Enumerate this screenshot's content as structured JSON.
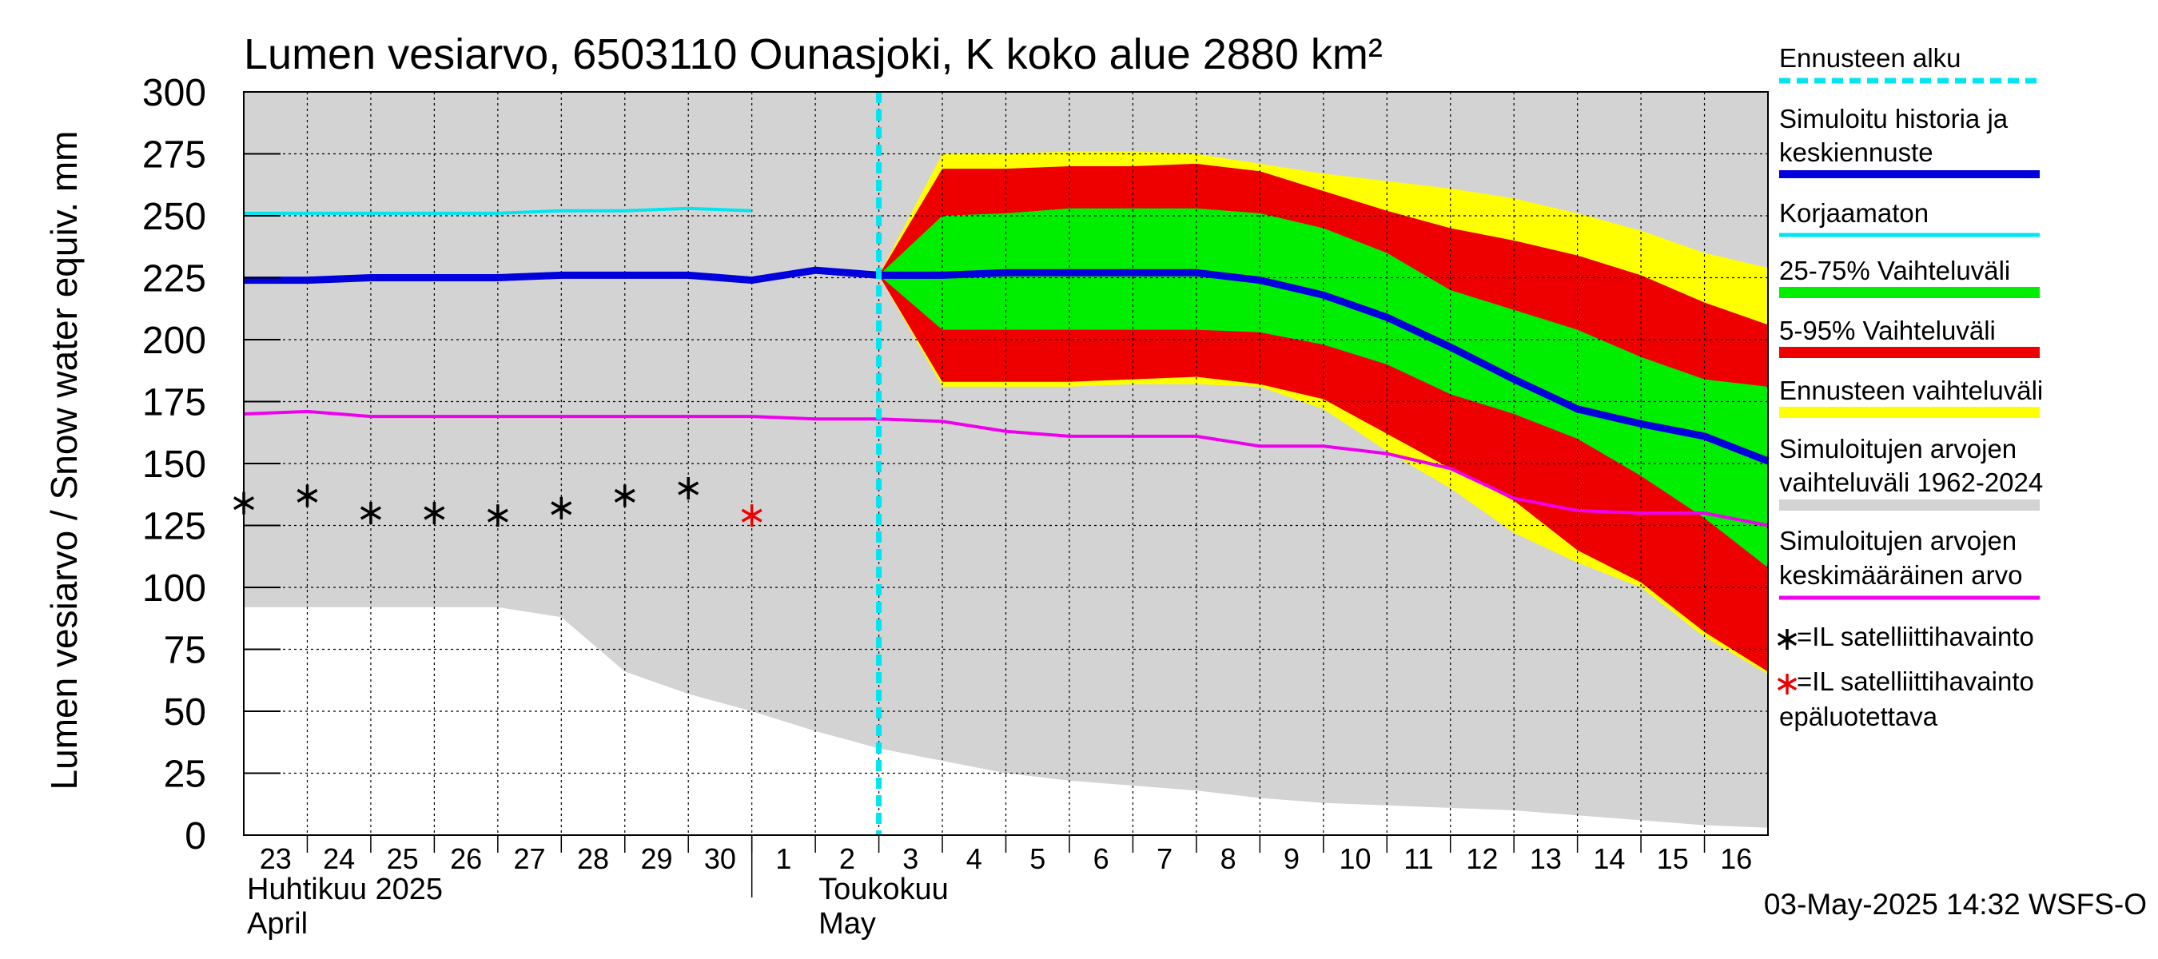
{
  "chart_data": {
    "type": "area",
    "title": "Lumen vesiarvo, 6503110 Ounasjoki, K koko alue 2880 km²",
    "ylabel": "Lumen vesiarvo / Snow water equiv.    mm",
    "ylim": [
      0,
      300
    ],
    "yticks": [
      0,
      25,
      50,
      75,
      100,
      125,
      150,
      175,
      200,
      225,
      250,
      275,
      300
    ],
    "xlim": [
      0,
      24
    ],
    "day_labels": [
      "23",
      "24",
      "25",
      "26",
      "27",
      "28",
      "29",
      "30",
      "1",
      "2",
      "3",
      "4",
      "5",
      "6",
      "7",
      "8",
      "9",
      "10",
      "11",
      "12",
      "13",
      "14",
      "15",
      "16"
    ],
    "month_labels": [
      {
        "fi": "Huhtikuu  2025",
        "en": "April",
        "x": 0
      },
      {
        "fi": "Toukokuu",
        "en": "May",
        "x": 9
      }
    ],
    "month_divider_x": 8,
    "grid": true,
    "forecast_start_x": 10,
    "series": {
      "sim_range_lower": {
        "x": [
          0,
          3,
          4,
          5,
          6,
          7,
          8,
          9,
          10,
          11,
          12,
          13,
          14,
          15,
          16,
          17,
          18,
          19,
          20,
          21,
          22,
          23,
          24
        ],
        "y": [
          92,
          92,
          92,
          88,
          66,
          57,
          50,
          42,
          35,
          30,
          25,
          22,
          20,
          18,
          15,
          13,
          12,
          11,
          10,
          8,
          6,
          4,
          3
        ]
      },
      "forecast_range": {
        "x": [
          10,
          11,
          12,
          13,
          14,
          15,
          16,
          17,
          18,
          19,
          20,
          21,
          22,
          23,
          24
        ],
        "upper": [
          226,
          275,
          275,
          276,
          276,
          275,
          271,
          267,
          264,
          261,
          257,
          251,
          244,
          235,
          229
        ],
        "lower": [
          226,
          181,
          181,
          181,
          182,
          182,
          181,
          172,
          155,
          140,
          122,
          110,
          100,
          80,
          65
        ]
      },
      "range_5_95": {
        "x": [
          10,
          11,
          12,
          13,
          14,
          15,
          16,
          17,
          18,
          19,
          20,
          21,
          22,
          23,
          24
        ],
        "upper": [
          226,
          269,
          269,
          270,
          270,
          271,
          268,
          260,
          252,
          245,
          240,
          234,
          226,
          215,
          206
        ],
        "lower": [
          226,
          183,
          183,
          183,
          184,
          185,
          182,
          176,
          162,
          148,
          135,
          115,
          102,
          82,
          66
        ]
      },
      "range_25_75": {
        "x": [
          10,
          11,
          12,
          13,
          14,
          15,
          16,
          17,
          18,
          19,
          20,
          21,
          22,
          23,
          24
        ],
        "upper": [
          226,
          250,
          251,
          253,
          253,
          253,
          251,
          245,
          235,
          220,
          212,
          204,
          193,
          184,
          181
        ],
        "lower": [
          226,
          204,
          204,
          204,
          204,
          204,
          203,
          198,
          190,
          178,
          170,
          160,
          145,
          128,
          108
        ]
      },
      "simulated": {
        "name": "Simuloitu historia ja keskiennuste",
        "color": "#0000dd",
        "x": [
          0,
          1,
          2,
          3,
          4,
          5,
          6,
          7,
          8,
          9,
          10,
          11,
          12,
          13,
          14,
          15,
          16,
          17,
          18,
          19,
          20,
          21,
          22,
          23,
          24
        ],
        "y": [
          224,
          224,
          225,
          225,
          225,
          226,
          226,
          226,
          224,
          228,
          226,
          226,
          227,
          227,
          227,
          227,
          224,
          218,
          209,
          197,
          184,
          172,
          166,
          161,
          151
        ]
      },
      "uncorrected": {
        "name": "Korjaamaton",
        "color": "#00e5f0",
        "x": [
          0,
          1,
          2,
          3,
          4,
          5,
          6,
          7,
          8
        ],
        "y": [
          251,
          251,
          251,
          251,
          251,
          252,
          252,
          253,
          252
        ]
      },
      "sim_mean": {
        "name": "Simuloitujen arvojen keskimääräinen arvo",
        "color": "#ee00ee",
        "x": [
          0,
          1,
          2,
          3,
          4,
          5,
          6,
          7,
          8,
          9,
          10,
          11,
          12,
          13,
          14,
          15,
          16,
          17,
          18,
          19,
          20,
          21,
          22,
          23,
          24
        ],
        "y": [
          170,
          171,
          169,
          169,
          169,
          169,
          169,
          169,
          169,
          168,
          168,
          167,
          163,
          161,
          161,
          161,
          157,
          157,
          154,
          148,
          136,
          131,
          130,
          130,
          125
        ]
      },
      "satellite_obs": {
        "name": "=IL satelliittihavainto",
        "x": [
          0,
          1,
          2,
          3,
          4,
          5,
          6,
          7
        ],
        "y": [
          134,
          137,
          130,
          130,
          129,
          132,
          137,
          140
        ]
      },
      "satellite_obs_unreliable": {
        "name": "=IL satelliittihavainto epäluotettava",
        "x": [
          8
        ],
        "y": [
          129
        ]
      }
    },
    "legend": [
      {
        "label": "Ennusteen alku",
        "color": "#00e5f0",
        "style": "dashed"
      },
      {
        "label": "Simuloitu historia ja keskiennuste",
        "color": "#0000dd",
        "style": "thick"
      },
      {
        "label": "Korjaamaton",
        "color": "#00e5f0",
        "style": "line"
      },
      {
        "label": "25-75% Vaihteluväli",
        "color": "#00ee00",
        "style": "band"
      },
      {
        "label": "5-95% Vaihteluväli",
        "color": "#ee0000",
        "style": "band"
      },
      {
        "label": "Ennusteen vaihteluväli",
        "color": "#ffff00",
        "style": "band"
      },
      {
        "label": "Simuloitujen arvojen vaihteluväli 1962-2024",
        "color": "#d3d3d3",
        "style": "band"
      },
      {
        "label": "Simuloitujen arvojen keskimääräinen arvo",
        "color": "#ee00ee",
        "style": "line"
      },
      {
        "label": "=IL satelliittihavainto",
        "color": "#000000",
        "style": "star"
      },
      {
        "label": "=IL satelliittihavainto epäluotettava",
        "color": "#ee0000",
        "style": "star"
      }
    ],
    "timestamp": "03-May-2025 14:32 WSFS-O"
  }
}
